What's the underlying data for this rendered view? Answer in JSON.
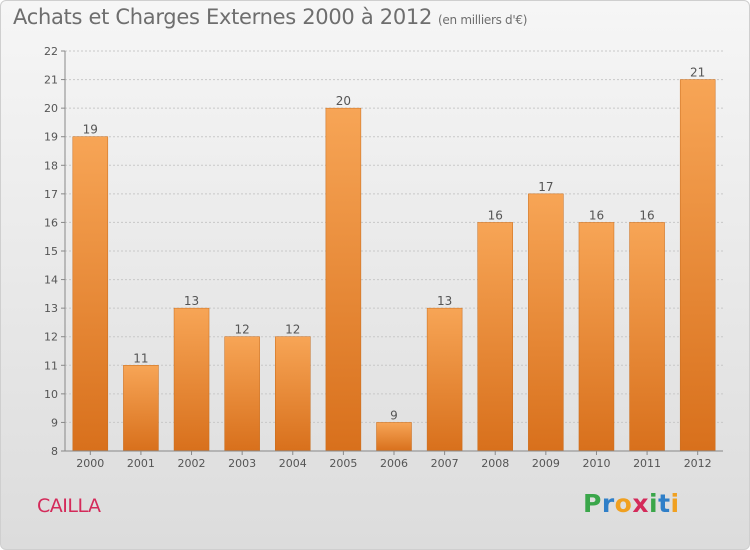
{
  "title": "Achats et Charges Externes 2000 à 2012",
  "unit": "(en milliers d'€)",
  "commune": "CAILLA",
  "logo": {
    "letters": [
      "P",
      "r",
      "o",
      "x",
      "i",
      "t",
      "i"
    ],
    "colors": [
      "#3aa64a",
      "#2f7fc8",
      "#f0a020",
      "#d42a5a",
      "#3aa64a",
      "#2f7fc8",
      "#f0a020"
    ]
  },
  "colors": {
    "bar_top": "#f7a556",
    "bar_bottom": "#d8701c",
    "grid": "#c8c8c8",
    "axis": "#888888",
    "label": "#555555"
  },
  "chart_data": {
    "type": "bar",
    "categories": [
      "2000",
      "2001",
      "2002",
      "2003",
      "2004",
      "2005",
      "2006",
      "2007",
      "2008",
      "2009",
      "2010",
      "2011",
      "2012"
    ],
    "values": [
      19,
      11,
      13,
      12,
      12,
      20,
      9,
      13,
      16,
      17,
      16,
      16,
      21
    ],
    "ylim": [
      8,
      22
    ],
    "yticks": [
      8,
      9,
      10,
      11,
      12,
      13,
      14,
      15,
      16,
      17,
      18,
      19,
      20,
      21,
      22
    ],
    "grid": true,
    "legend": "none"
  }
}
